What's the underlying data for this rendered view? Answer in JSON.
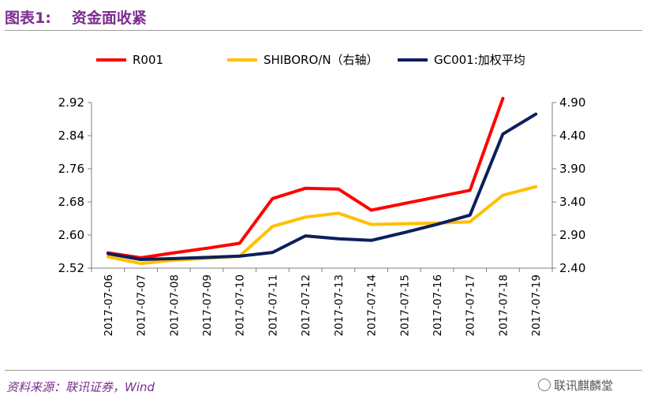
{
  "figure": {
    "number": "图表1:",
    "title": "资金面收紧",
    "source": "资料来源：联讯证券，Wind",
    "watermark": "联讯麒麟堂"
  },
  "colors": {
    "title": "#7B2C8E",
    "r001": "#FF0000",
    "shibor": "#FFC000",
    "gc001": "#0B1F5C"
  },
  "chart_data": {
    "type": "line",
    "title": "",
    "xlabel": "",
    "ylabel": "",
    "grid": false,
    "legend_position": "top",
    "categories": [
      "2017-07-06",
      "2017-07-07",
      "2017-07-08",
      "2017-07-09",
      "2017-07-10",
      "2017-07-11",
      "2017-07-12",
      "2017-07-13",
      "2017-07-14",
      "2017-07-15",
      "2017-07-16",
      "2017-07-17",
      "2017-07-18",
      "2017-07-19"
    ],
    "y_left": {
      "ylim": [
        2.52,
        2.92
      ],
      "ticks": [
        "2.52",
        "2.60",
        "2.68",
        "2.76",
        "2.84",
        "2.92"
      ]
    },
    "y_right": {
      "ylim": [
        2.4,
        4.9
      ],
      "ticks": [
        "2.40",
        "2.90",
        "3.40",
        "3.90",
        "4.40",
        "4.90"
      ]
    },
    "series": [
      {
        "name": "R001",
        "axis": "left",
        "color": "#FF0000",
        "values": [
          2.557,
          2.545,
          2.557,
          2.568,
          2.58,
          2.688,
          2.713,
          2.711,
          2.66,
          2.676,
          2.692,
          2.708,
          2.93,
          null
        ]
      },
      {
        "name": "SHIBORO/N（右轴）",
        "axis": "right",
        "color": "#FFC000",
        "values": [
          2.57,
          2.47,
          2.52,
          2.55,
          2.58,
          3.03,
          3.17,
          3.23,
          3.06,
          3.07,
          3.08,
          3.1,
          3.5,
          3.63
        ]
      },
      {
        "name": "GC001:加权平均",
        "axis": "left",
        "color": "#0B1F5C",
        "values": [
          2.555,
          2.541,
          2.543,
          2.546,
          2.549,
          2.558,
          2.598,
          2.591,
          2.587,
          2.606,
          2.626,
          2.648,
          2.844,
          2.892
        ]
      }
    ]
  }
}
